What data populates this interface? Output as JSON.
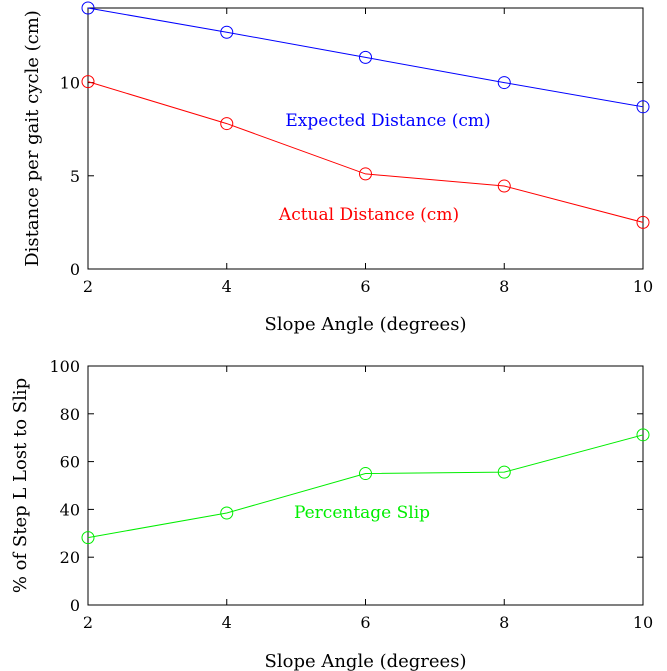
{
  "chart_data": [
    {
      "type": "line",
      "x": [
        2,
        4,
        6,
        8,
        10
      ],
      "xlim": [
        2,
        10
      ],
      "ylim": [
        0,
        14
      ],
      "xticks": [
        2,
        4,
        6,
        8,
        10
      ],
      "yticks": [
        0,
        5,
        10
      ],
      "xlabel": "Slope Angle (degrees)",
      "ylabel": "Distance per gait cycle (cm)",
      "grid": false,
      "series": [
        {
          "name": "Expected Distance (cm)",
          "color": "#0000ff",
          "values": [
            14.0,
            12.7,
            11.35,
            10.0,
            8.7
          ]
        },
        {
          "name": "Actual Distance (cm)",
          "color": "#ff0000",
          "values": [
            10.05,
            7.8,
            5.1,
            4.45,
            2.5
          ]
        }
      ]
    },
    {
      "type": "line",
      "x": [
        2,
        4,
        6,
        8,
        10
      ],
      "xlim": [
        2,
        10
      ],
      "ylim": [
        0,
        100
      ],
      "xticks": [
        2,
        4,
        6,
        8,
        10
      ],
      "yticks": [
        0,
        20,
        40,
        60,
        80,
        100
      ],
      "xlabel": "Slope Angle (degrees)",
      "ylabel": "% of Step L Lost to Slip",
      "grid": false,
      "series": [
        {
          "name": "Percentage Slip",
          "color": "#00ee00",
          "values": [
            28.2,
            38.5,
            55.0,
            55.6,
            71.2
          ]
        }
      ]
    }
  ]
}
